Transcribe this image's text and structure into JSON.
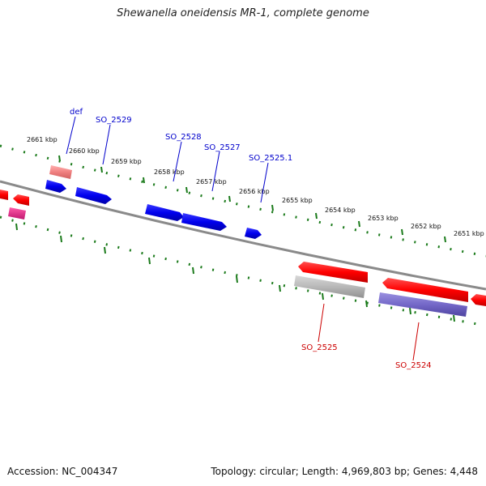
{
  "title": "Shewanella oneidensis MR-1, complete genome",
  "footer": {
    "accession": "Accession: NC_004347",
    "summary": "Topology: circular; Length: 4,969,803 bp; Genes: 4,448"
  },
  "colors": {
    "backbone": "#808080",
    "ticks": "#1a7a1a",
    "forward_label": "#0000cc",
    "reverse_label": "#cc0000",
    "forward_feature": "#0000ee",
    "reverse_feature": "#ff0000"
  },
  "kbp_labels": [
    "2661 kbp",
    "2660 kbp",
    "2659 kbp",
    "2658 kbp",
    "2657 kbp",
    "2656 kbp",
    "2655 kbp",
    "2654 kbp",
    "2653 kbp",
    "2652 kbp",
    "2651 kbp"
  ],
  "gene_labels": {
    "forward": [
      "def",
      "SO_2529",
      "SO_2528",
      "SO_2527",
      "SO_2525.1"
    ],
    "reverse": [
      "SO_2525",
      "SO_2524"
    ]
  }
}
